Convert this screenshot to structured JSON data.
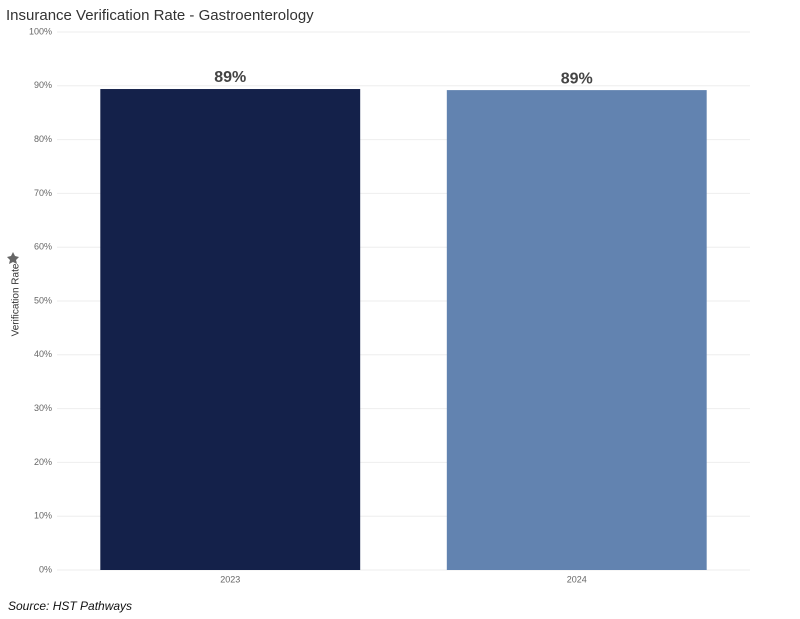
{
  "chart_data": {
    "type": "bar",
    "title": "Insurance Verification Rate - Gastroenterology",
    "y_label": "Verification Rate",
    "categories": [
      "2023",
      "2024"
    ],
    "values": [
      89.4,
      89.2
    ],
    "value_labels": [
      "89%",
      "89%"
    ],
    "colors": [
      "#14214a",
      "#6283b0"
    ],
    "ylim": [
      0,
      100
    ],
    "yticks": [
      {
        "value": 0,
        "label": "0%"
      },
      {
        "value": 10,
        "label": "10%"
      },
      {
        "value": 20,
        "label": "20%"
      },
      {
        "value": 30,
        "label": "30%"
      },
      {
        "value": 40,
        "label": "40%"
      },
      {
        "value": 50,
        "label": "50%"
      },
      {
        "value": 60,
        "label": "60%"
      },
      {
        "value": 70,
        "label": "70%"
      },
      {
        "value": 80,
        "label": "80%"
      },
      {
        "value": 90,
        "label": "90%"
      },
      {
        "value": 100,
        "label": "100%"
      }
    ],
    "grid": true,
    "source": "Source: HST Pathways"
  }
}
